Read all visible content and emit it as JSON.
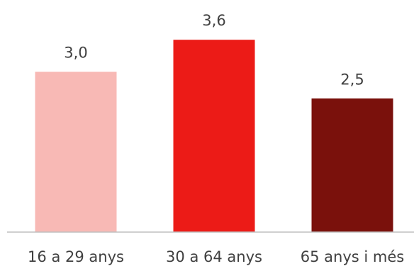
{
  "chart_data": {
    "type": "bar",
    "categories": [
      "16 a 29 anys",
      "30 a 64 anys",
      "65 anys i més"
    ],
    "values": [
      3.0,
      3.6,
      2.5
    ],
    "value_labels": [
      "3,0",
      "3,6",
      "2,5"
    ],
    "colors": [
      "#F8B9B5",
      "#EC1B17",
      "#7A110C"
    ],
    "axis_color": "#BFBFBF",
    "ylim": [
      0,
      4.2
    ],
    "title": "",
    "xlabel": "",
    "ylabel": "",
    "grid": false,
    "legend": "none"
  }
}
